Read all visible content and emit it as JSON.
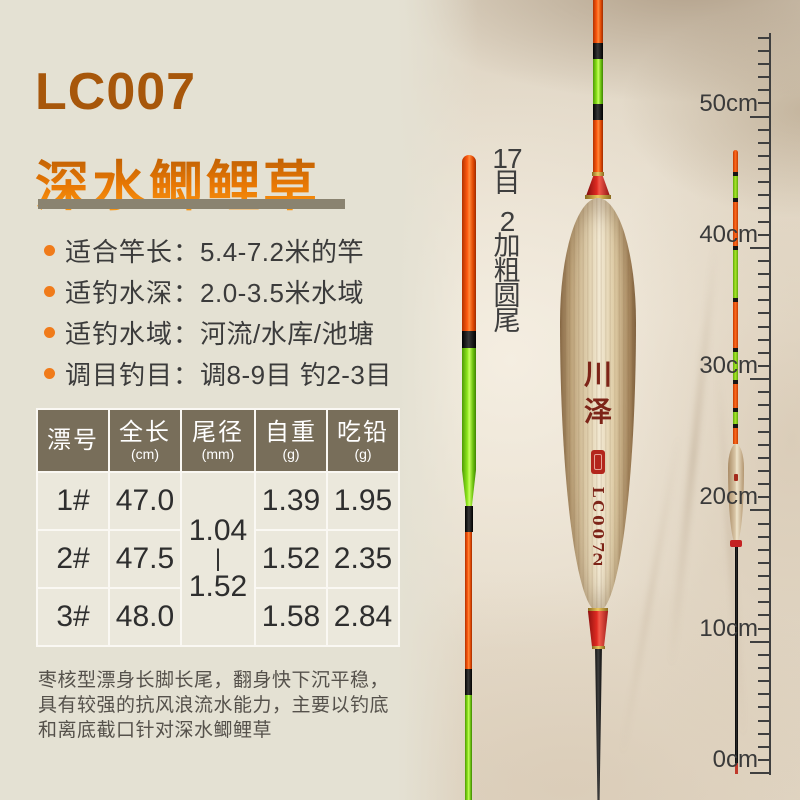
{
  "header": {
    "model": "LC007",
    "title": "深水鲫鲤草"
  },
  "specs": [
    {
      "label": "适合竿长：",
      "value": "5.4-7.2米的竿"
    },
    {
      "label": "适钓水深：",
      "value": "2.0-3.5米水域"
    },
    {
      "label": "适钓水域：",
      "value": "河流/水库/池塘"
    },
    {
      "label": "调目钓目：",
      "value": "调8-9目 钓2-3目"
    }
  ],
  "table": {
    "headers": [
      {
        "name": "漂号",
        "unit": ""
      },
      {
        "name": "全长",
        "unit": "(cm)"
      },
      {
        "name": "尾径",
        "unit": "(mm)"
      },
      {
        "name": "自重",
        "unit": "(g)"
      },
      {
        "name": "吃铅",
        "unit": "(g)"
      }
    ],
    "tail": {
      "min": "1.04",
      "sep": "|",
      "max": "1.52"
    },
    "rows": [
      {
        "no": "1#",
        "length": "47.0",
        "weight": "1.39",
        "lead": "1.95"
      },
      {
        "no": "2#",
        "length": "47.5",
        "weight": "1.52",
        "lead": "2.35"
      },
      {
        "no": "3#",
        "length": "48.0",
        "weight": "1.58",
        "lead": "2.84"
      }
    ]
  },
  "description": {
    "lines": [
      "枣核型漂身长脚长尾，翻身快下沉平稳，",
      "具有较强的抗风浪流水能力，主要以钓底",
      "和离底截口针对深水鲫鲤草"
    ]
  },
  "annotation": {
    "line1": "17目",
    "line2": "2加粗圆尾"
  },
  "brand": {
    "name": "川泽",
    "model": "LC007",
    "size": "2"
  },
  "ruler": {
    "labels": [
      "50cm",
      "40cm",
      "30cm",
      "20cm",
      "10cm",
      "0cm"
    ]
  },
  "colors": {
    "background": "#E4E1D3",
    "model_title": "#A7570B",
    "title_gradient_top": "#B65B04",
    "title_gradient_bottom": "#FF9D14",
    "underline_bar": "#8A8370",
    "bullet_orange": "#F07B1A",
    "table_header_bg": "#786E5A",
    "table_cell_bg": "#EBE8DC",
    "lead_column_bg": "#EFC197",
    "float_tip_orange": "#FF5A10",
    "float_green": "#8EE61E",
    "collar_red": "#C41A1A",
    "wood_body": "#D9C6A8",
    "brand_red": "#7D2418"
  }
}
